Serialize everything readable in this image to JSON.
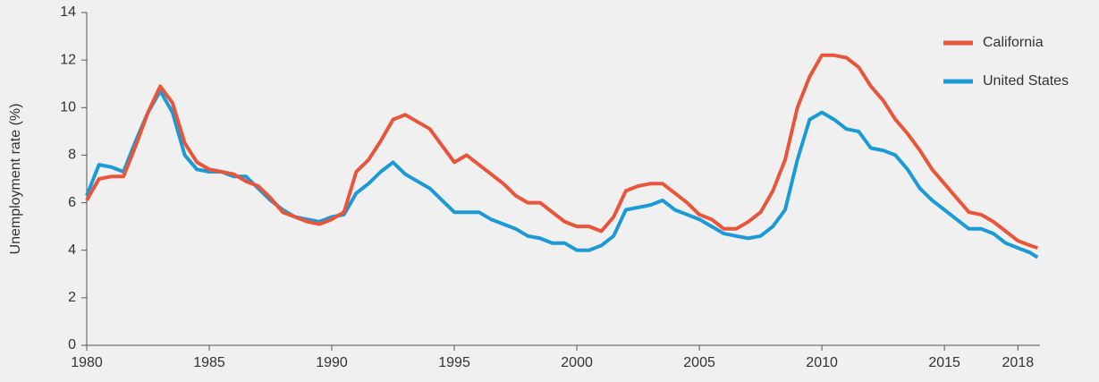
{
  "chart_data": {
    "type": "line",
    "y_label": "Unemployment rate (%)",
    "x": [
      1980.0,
      1980.5,
      1981.0,
      1981.5,
      1982.0,
      1982.5,
      1983.0,
      1983.5,
      1984.0,
      1984.5,
      1985.0,
      1985.5,
      1986.0,
      1986.5,
      1987.0,
      1987.5,
      1988.0,
      1988.5,
      1989.0,
      1989.5,
      1990.0,
      1990.5,
      1991.0,
      1991.5,
      1992.0,
      1992.5,
      1993.0,
      1993.5,
      1994.0,
      1994.5,
      1995.0,
      1995.5,
      1996.0,
      1996.5,
      1997.0,
      1997.5,
      1998.0,
      1998.5,
      1999.0,
      1999.5,
      2000.0,
      2000.5,
      2001.0,
      2001.5,
      2002.0,
      2002.5,
      2003.0,
      2003.5,
      2004.0,
      2004.5,
      2005.0,
      2005.5,
      2006.0,
      2006.5,
      2007.0,
      2007.5,
      2008.0,
      2008.5,
      2009.0,
      2009.5,
      2010.0,
      2010.5,
      2011.0,
      2011.5,
      2012.0,
      2012.5,
      2013.0,
      2013.5,
      2014.0,
      2014.5,
      2015.0,
      2015.5,
      2016.0,
      2016.5,
      2017.0,
      2017.5,
      2018.0,
      2018.5,
      2018.8
    ],
    "series": [
      {
        "name": "California",
        "color": "#e9553b",
        "values": [
          6.1,
          7.0,
          7.1,
          7.1,
          8.4,
          9.8,
          10.9,
          10.2,
          8.5,
          7.7,
          7.4,
          7.3,
          7.2,
          6.9,
          6.7,
          6.2,
          5.6,
          5.4,
          5.2,
          5.1,
          5.3,
          5.6,
          7.3,
          7.8,
          8.6,
          9.5,
          9.7,
          9.4,
          9.1,
          8.4,
          7.7,
          8.0,
          7.6,
          7.2,
          6.8,
          6.3,
          6.0,
          6.0,
          5.6,
          5.2,
          5.0,
          5.0,
          4.8,
          5.4,
          6.5,
          6.7,
          6.8,
          6.8,
          6.4,
          6.0,
          5.5,
          5.3,
          4.9,
          4.9,
          5.2,
          5.6,
          6.5,
          7.8,
          10.0,
          11.3,
          12.2,
          12.2,
          12.1,
          11.7,
          10.9,
          10.3,
          9.5,
          8.9,
          8.2,
          7.4,
          6.8,
          6.2,
          5.6,
          5.5,
          5.2,
          4.8,
          4.4,
          4.2,
          4.1
        ]
      },
      {
        "name": "United States",
        "color": "#1b9ad6",
        "values": [
          6.3,
          7.6,
          7.5,
          7.3,
          8.6,
          9.8,
          10.7,
          9.8,
          8.0,
          7.4,
          7.3,
          7.3,
          7.1,
          7.1,
          6.6,
          6.1,
          5.7,
          5.4,
          5.3,
          5.2,
          5.4,
          5.5,
          6.4,
          6.8,
          7.3,
          7.7,
          7.2,
          6.9,
          6.6,
          6.1,
          5.6,
          5.6,
          5.6,
          5.3,
          5.1,
          4.9,
          4.6,
          4.5,
          4.3,
          4.3,
          4.0,
          4.0,
          4.2,
          4.6,
          5.7,
          5.8,
          5.9,
          6.1,
          5.7,
          5.5,
          5.3,
          5.0,
          4.7,
          4.6,
          4.5,
          4.6,
          5.0,
          5.7,
          7.8,
          9.5,
          9.8,
          9.5,
          9.1,
          9.0,
          8.3,
          8.2,
          8.0,
          7.4,
          6.6,
          6.1,
          5.7,
          5.3,
          4.9,
          4.9,
          4.7,
          4.3,
          4.1,
          3.9,
          3.7
        ]
      }
    ],
    "xlim": [
      1980,
      2018.9
    ],
    "xticks": [
      1980,
      1985,
      1990,
      1995,
      2000,
      2005,
      2010,
      2015,
      2018
    ],
    "ylim": [
      0,
      14
    ],
    "yticks": [
      0,
      2,
      4,
      6,
      8,
      10,
      12,
      14
    ],
    "grid": false,
    "legend": "upper right"
  }
}
